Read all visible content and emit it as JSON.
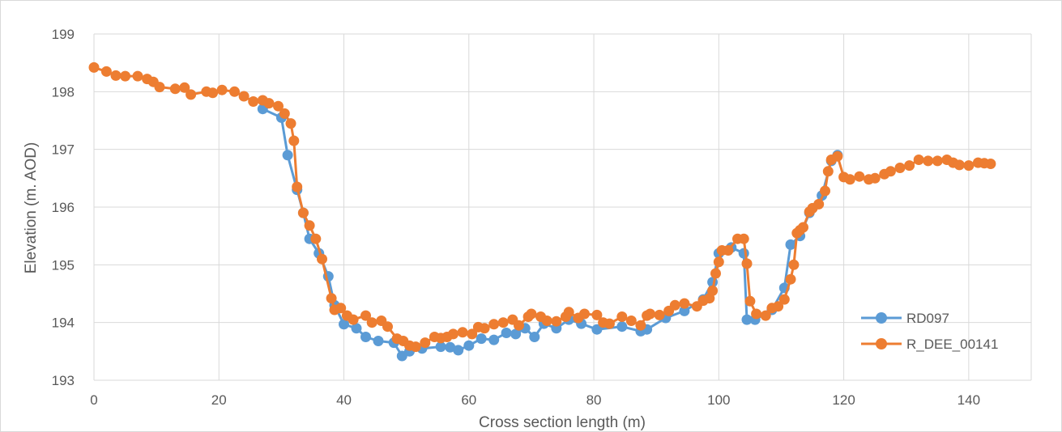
{
  "chart_data": {
    "type": "line",
    "title": "",
    "xlabel": "Cross section length (m)",
    "ylabel": "Elevation (m. AOD)",
    "xlim": [
      0,
      150
    ],
    "ylim": [
      193,
      199
    ],
    "xticks": [
      0,
      20,
      40,
      60,
      80,
      100,
      120,
      140
    ],
    "yticks": [
      193,
      194,
      195,
      196,
      197,
      198,
      199
    ],
    "grid": true,
    "legend_position": "bottom-right",
    "series": [
      {
        "name": "RD097",
        "color": "#5B9BD5",
        "marker": "circle",
        "points": [
          [
            27.0,
            197.7
          ],
          [
            30.0,
            197.55
          ],
          [
            31.0,
            196.9
          ],
          [
            32.5,
            196.3
          ],
          [
            33.5,
            195.9
          ],
          [
            34.5,
            195.45
          ],
          [
            36.0,
            195.2
          ],
          [
            37.5,
            194.8
          ],
          [
            38.5,
            194.3
          ],
          [
            40.0,
            193.97
          ],
          [
            42.0,
            193.9
          ],
          [
            43.5,
            193.75
          ],
          [
            45.5,
            193.68
          ],
          [
            48.0,
            193.65
          ],
          [
            49.3,
            193.42
          ],
          [
            50.5,
            193.5
          ],
          [
            52.5,
            193.55
          ],
          [
            55.5,
            193.58
          ],
          [
            57.0,
            193.57
          ],
          [
            58.3,
            193.52
          ],
          [
            60.0,
            193.6
          ],
          [
            62.0,
            193.72
          ],
          [
            64.0,
            193.7
          ],
          [
            66.0,
            193.82
          ],
          [
            67.5,
            193.8
          ],
          [
            69.0,
            193.9
          ],
          [
            70.5,
            193.75
          ],
          [
            72.0,
            193.98
          ],
          [
            74.0,
            193.9
          ],
          [
            76.0,
            194.05
          ],
          [
            78.0,
            193.98
          ],
          [
            80.5,
            193.88
          ],
          [
            84.5,
            193.93
          ],
          [
            87.5,
            193.85
          ],
          [
            88.5,
            193.88
          ],
          [
            91.5,
            194.08
          ],
          [
            94.5,
            194.2
          ],
          [
            97.5,
            194.4
          ],
          [
            99.0,
            194.7
          ],
          [
            100.0,
            195.2
          ],
          [
            102.0,
            195.3
          ],
          [
            104.0,
            195.2
          ],
          [
            104.5,
            194.05
          ],
          [
            105.8,
            194.05
          ],
          [
            108.5,
            194.22
          ],
          [
            110.5,
            194.6
          ],
          [
            111.5,
            195.35
          ],
          [
            113.0,
            195.5
          ],
          [
            114.5,
            195.9
          ],
          [
            116.5,
            196.2
          ],
          [
            118.0,
            196.8
          ],
          [
            119.0,
            196.9
          ]
        ]
      },
      {
        "name": "R_DEE_00141",
        "color": "#ED7D31",
        "marker": "circle",
        "points": [
          [
            0.0,
            198.42
          ],
          [
            2.0,
            198.35
          ],
          [
            3.5,
            198.28
          ],
          [
            5.0,
            198.27
          ],
          [
            7.0,
            198.27
          ],
          [
            8.5,
            198.22
          ],
          [
            9.5,
            198.17
          ],
          [
            10.5,
            198.08
          ],
          [
            13.0,
            198.05
          ],
          [
            14.5,
            198.07
          ],
          [
            15.5,
            197.95
          ],
          [
            18.0,
            198.0
          ],
          [
            19.0,
            197.98
          ],
          [
            20.5,
            198.03
          ],
          [
            22.5,
            198.0
          ],
          [
            24.0,
            197.92
          ],
          [
            25.5,
            197.83
          ],
          [
            27.0,
            197.85
          ],
          [
            28.0,
            197.8
          ],
          [
            29.5,
            197.75
          ],
          [
            30.5,
            197.62
          ],
          [
            31.5,
            197.45
          ],
          [
            32.0,
            197.15
          ],
          [
            32.5,
            196.35
          ],
          [
            33.5,
            195.9
          ],
          [
            34.5,
            195.68
          ],
          [
            35.5,
            195.45
          ],
          [
            36.5,
            195.1
          ],
          [
            38.0,
            194.42
          ],
          [
            38.5,
            194.22
          ],
          [
            39.5,
            194.25
          ],
          [
            40.5,
            194.12
          ],
          [
            41.5,
            194.05
          ],
          [
            43.5,
            194.12
          ],
          [
            44.5,
            194.0
          ],
          [
            46.0,
            194.03
          ],
          [
            47.0,
            193.93
          ],
          [
            48.5,
            193.72
          ],
          [
            49.5,
            193.68
          ],
          [
            50.5,
            193.6
          ],
          [
            51.5,
            193.58
          ],
          [
            53.0,
            193.65
          ],
          [
            54.5,
            193.75
          ],
          [
            55.5,
            193.73
          ],
          [
            56.5,
            193.75
          ],
          [
            57.5,
            193.8
          ],
          [
            59.0,
            193.83
          ],
          [
            60.5,
            193.8
          ],
          [
            61.5,
            193.92
          ],
          [
            62.5,
            193.9
          ],
          [
            64.0,
            193.97
          ],
          [
            65.5,
            194.0
          ],
          [
            67.0,
            194.05
          ],
          [
            68.0,
            193.95
          ],
          [
            69.5,
            194.1
          ],
          [
            70.0,
            194.15
          ],
          [
            71.5,
            194.1
          ],
          [
            72.5,
            194.03
          ],
          [
            74.0,
            194.02
          ],
          [
            75.5,
            194.1
          ],
          [
            76.0,
            194.18
          ],
          [
            77.5,
            194.08
          ],
          [
            78.5,
            194.15
          ],
          [
            80.5,
            194.13
          ],
          [
            81.5,
            194.0
          ],
          [
            82.5,
            193.98
          ],
          [
            84.5,
            194.1
          ],
          [
            86.0,
            194.03
          ],
          [
            87.5,
            193.95
          ],
          [
            88.5,
            194.12
          ],
          [
            89.0,
            194.15
          ],
          [
            90.5,
            194.13
          ],
          [
            92.0,
            194.2
          ],
          [
            93.0,
            194.3
          ],
          [
            94.5,
            194.33
          ],
          [
            96.5,
            194.28
          ],
          [
            97.5,
            194.38
          ],
          [
            98.5,
            194.42
          ],
          [
            99.0,
            194.55
          ],
          [
            99.5,
            194.85
          ],
          [
            100.0,
            195.05
          ],
          [
            100.5,
            195.25
          ],
          [
            101.5,
            195.25
          ],
          [
            103.0,
            195.45
          ],
          [
            104.0,
            195.45
          ],
          [
            104.5,
            195.02
          ],
          [
            105.0,
            194.37
          ],
          [
            106.0,
            194.15
          ],
          [
            107.5,
            194.12
          ],
          [
            108.5,
            194.25
          ],
          [
            109.5,
            194.28
          ],
          [
            110.5,
            194.4
          ],
          [
            111.5,
            194.75
          ],
          [
            112.0,
            195.0
          ],
          [
            112.5,
            195.55
          ],
          [
            113.0,
            195.6
          ],
          [
            113.5,
            195.65
          ],
          [
            114.5,
            195.92
          ],
          [
            115.0,
            195.98
          ],
          [
            116.0,
            196.05
          ],
          [
            117.0,
            196.28
          ],
          [
            117.5,
            196.62
          ],
          [
            118.0,
            196.82
          ],
          [
            119.0,
            196.88
          ],
          [
            120.0,
            196.52
          ],
          [
            121.0,
            196.48
          ],
          [
            122.5,
            196.53
          ],
          [
            124.0,
            196.48
          ],
          [
            125.0,
            196.5
          ],
          [
            126.5,
            196.57
          ],
          [
            127.5,
            196.62
          ],
          [
            129.0,
            196.68
          ],
          [
            130.5,
            196.72
          ],
          [
            132.0,
            196.82
          ],
          [
            133.5,
            196.8
          ],
          [
            135.0,
            196.8
          ],
          [
            136.5,
            196.82
          ],
          [
            137.5,
            196.77
          ],
          [
            138.5,
            196.73
          ],
          [
            140.0,
            196.72
          ],
          [
            141.5,
            196.77
          ],
          [
            142.5,
            196.76
          ],
          [
            143.5,
            196.75
          ]
        ]
      }
    ]
  }
}
